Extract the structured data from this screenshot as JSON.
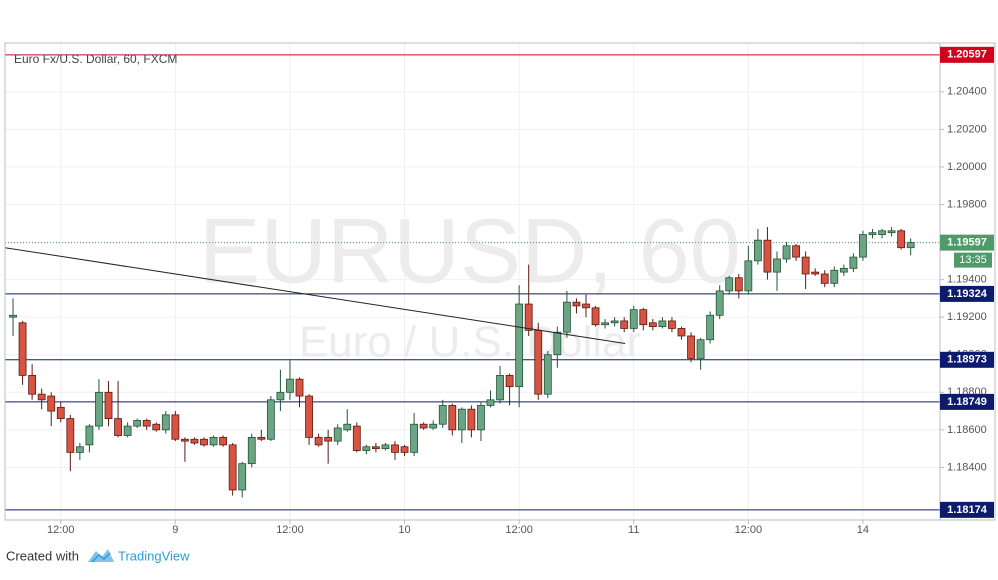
{
  "chart_data": {
    "type": "candlestick",
    "title": "Euro Fx/U.S. Dollar, 60, FXCM",
    "watermark": "EURUSD, 60",
    "watermark_subtitle": "Euro / U.S. Dollar",
    "footer": {
      "prefix": "Created with",
      "brand": "TradingView"
    },
    "up_color": "#6ba583",
    "down_color": "#d75442",
    "grid": true,
    "xlim": [
      -0.84,
      97.07
    ],
    "ylim": [
      1.1812,
      1.2066
    ],
    "xticks": [
      {
        "value": 5,
        "label": "12:00"
      },
      {
        "value": 17,
        "label": "9"
      },
      {
        "value": 29,
        "label": "12:00"
      },
      {
        "value": 41,
        "label": "10"
      },
      {
        "value": 53,
        "label": "12:00"
      },
      {
        "value": 65,
        "label": "11"
      },
      {
        "value": 77,
        "label": "12:00"
      },
      {
        "value": 89,
        "label": "14"
      }
    ],
    "yticks": [
      {
        "value": 1.184,
        "label": "1.18400"
      },
      {
        "value": 1.186,
        "label": "1.18600"
      },
      {
        "value": 1.188,
        "label": "1.18800"
      },
      {
        "value": 1.19,
        "label": "1.19000"
      },
      {
        "value": 1.192,
        "label": "1.19200"
      },
      {
        "value": 1.194,
        "label": "1.19400"
      },
      {
        "value": 1.196,
        "label": "1.19600"
      },
      {
        "value": 1.198,
        "label": "1.19800"
      },
      {
        "value": 1.2,
        "label": "1.20000"
      },
      {
        "value": 1.202,
        "label": "1.20200"
      },
      {
        "value": 1.204,
        "label": "1.20400"
      }
    ],
    "levels": [
      {
        "value": 1.20597,
        "color": "#d0021b"
      },
      {
        "value": 1.19324,
        "color": "#0d1b6e"
      },
      {
        "value": 1.18973,
        "color": "#0d1b6e"
      },
      {
        "value": 1.18749,
        "color": "#0d1b6e"
      },
      {
        "value": 1.18174,
        "color": "#0d1b6e"
      }
    ],
    "last_price": {
      "value": 1.19597,
      "countdown": "13:35",
      "color": "#4e9a6a"
    },
    "trendline": {
      "x": [
        -0.84,
        64.1
      ],
      "y": [
        1.1957,
        1.1906
      ],
      "color": "#222222"
    },
    "candles": [
      [
        1.192,
        1.193,
        1.191,
        1.1921
      ],
      [
        1.1917,
        1.1918,
        1.1884,
        1.1889
      ],
      [
        1.1889,
        1.1895,
        1.1876,
        1.1879
      ],
      [
        1.1879,
        1.1882,
        1.1871,
        1.1876
      ],
      [
        1.1878,
        1.188,
        1.1862,
        1.187
      ],
      [
        1.1872,
        1.1875,
        1.1864,
        1.1866
      ],
      [
        1.1866,
        1.1868,
        1.1838,
        1.1848
      ],
      [
        1.1848,
        1.1853,
        1.1844,
        1.1851
      ],
      [
        1.1852,
        1.1863,
        1.1848,
        1.1862
      ],
      [
        1.1862,
        1.1887,
        1.186,
        1.188
      ],
      [
        1.188,
        1.1886,
        1.1862,
        1.1866
      ],
      [
        1.1866,
        1.1886,
        1.1856,
        1.1857
      ],
      [
        1.1857,
        1.1864,
        1.1856,
        1.1862
      ],
      [
        1.1862,
        1.1866,
        1.1861,
        1.1865
      ],
      [
        1.1865,
        1.1866,
        1.186,
        1.1862
      ],
      [
        1.1863,
        1.1864,
        1.1859,
        1.186
      ],
      [
        1.186,
        1.187,
        1.1858,
        1.1868
      ],
      [
        1.1868,
        1.187,
        1.1854,
        1.1855
      ],
      [
        1.1855,
        1.1856,
        1.1843,
        1.1854
      ],
      [
        1.1855,
        1.1856,
        1.1852,
        1.1853
      ],
      [
        1.1855,
        1.1856,
        1.1851,
        1.1852
      ],
      [
        1.1852,
        1.1857,
        1.1851,
        1.1856
      ],
      [
        1.1856,
        1.1857,
        1.1851,
        1.1852
      ],
      [
        1.1852,
        1.1853,
        1.1825,
        1.1828
      ],
      [
        1.1828,
        1.1843,
        1.1824,
        1.1842
      ],
      [
        1.1842,
        1.1858,
        1.184,
        1.1856
      ],
      [
        1.1856,
        1.186,
        1.1854,
        1.1855
      ],
      [
        1.1855,
        1.1878,
        1.1854,
        1.1876
      ],
      [
        1.1876,
        1.1892,
        1.187,
        1.188
      ],
      [
        1.188,
        1.1897,
        1.1876,
        1.1887
      ],
      [
        1.1887,
        1.1888,
        1.1872,
        1.1878
      ],
      [
        1.1878,
        1.1879,
        1.1852,
        1.1856
      ],
      [
        1.1856,
        1.1858,
        1.1851,
        1.1852
      ],
      [
        1.1856,
        1.186,
        1.1842,
        1.1854
      ],
      [
        1.1854,
        1.1863,
        1.1852,
        1.1861
      ],
      [
        1.186,
        1.1871,
        1.1859,
        1.1863
      ],
      [
        1.1862,
        1.1864,
        1.1848,
        1.1849
      ],
      [
        1.1849,
        1.1852,
        1.1847,
        1.1851
      ],
      [
        1.1851,
        1.1853,
        1.1848,
        1.185
      ],
      [
        1.185,
        1.1853,
        1.1849,
        1.1852
      ],
      [
        1.1852,
        1.1854,
        1.1844,
        1.1848
      ],
      [
        1.1851,
        1.1852,
        1.1846,
        1.1848
      ],
      [
        1.1848,
        1.1869,
        1.1846,
        1.1863
      ],
      [
        1.1863,
        1.1864,
        1.186,
        1.1861
      ],
      [
        1.1861,
        1.1865,
        1.186,
        1.1863
      ],
      [
        1.1863,
        1.1876,
        1.1861,
        1.1873
      ],
      [
        1.1873,
        1.1874,
        1.1857,
        1.186
      ],
      [
        1.186,
        1.1872,
        1.1853,
        1.1871
      ],
      [
        1.1871,
        1.1873,
        1.1856,
        1.186
      ],
      [
        1.186,
        1.1875,
        1.1854,
        1.1873
      ],
      [
        1.1873,
        1.1881,
        1.1872,
        1.1876
      ],
      [
        1.1876,
        1.1894,
        1.1874,
        1.1889
      ],
      [
        1.1889,
        1.189,
        1.1873,
        1.1883
      ],
      [
        1.1883,
        1.1937,
        1.1872,
        1.1927
      ],
      [
        1.1927,
        1.1948,
        1.191,
        1.1913
      ],
      [
        1.1913,
        1.1917,
        1.1876,
        1.1879
      ],
      [
        1.1879,
        1.1902,
        1.1877,
        1.19
      ],
      [
        1.19,
        1.1915,
        1.1893,
        1.1912
      ],
      [
        1.1912,
        1.1934,
        1.1909,
        1.1928
      ],
      [
        1.1928,
        1.193,
        1.1922,
        1.1926
      ],
      [
        1.1927,
        1.1932,
        1.192,
        1.1925
      ],
      [
        1.1925,
        1.1926,
        1.1915,
        1.1916
      ],
      [
        1.1916,
        1.1919,
        1.1914,
        1.1917
      ],
      [
        1.1917,
        1.192,
        1.1915,
        1.1918
      ],
      [
        1.1918,
        1.192,
        1.1912,
        1.1914
      ],
      [
        1.1914,
        1.1926,
        1.1912,
        1.1924
      ],
      [
        1.1924,
        1.1925,
        1.1913,
        1.1916
      ],
      [
        1.1917,
        1.1919,
        1.1913,
        1.1915
      ],
      [
        1.1915,
        1.192,
        1.1914,
        1.1918
      ],
      [
        1.1918,
        1.192,
        1.1912,
        1.1914
      ],
      [
        1.1914,
        1.1915,
        1.1908,
        1.191
      ],
      [
        1.191,
        1.1912,
        1.1896,
        1.1898
      ],
      [
        1.1898,
        1.1909,
        1.1892,
        1.1908
      ],
      [
        1.1908,
        1.1923,
        1.1906,
        1.1921
      ],
      [
        1.1921,
        1.1937,
        1.1919,
        1.1934
      ],
      [
        1.1934,
        1.1942,
        1.1932,
        1.1941
      ],
      [
        1.1941,
        1.1943,
        1.193,
        1.1934
      ],
      [
        1.1934,
        1.1958,
        1.1932,
        1.195
      ],
      [
        1.195,
        1.1967,
        1.1948,
        1.1961
      ],
      [
        1.1961,
        1.1968,
        1.194,
        1.1944
      ],
      [
        1.1944,
        1.1955,
        1.1934,
        1.1951
      ],
      [
        1.1951,
        1.196,
        1.1949,
        1.1958
      ],
      [
        1.1958,
        1.1959,
        1.195,
        1.1952
      ],
      [
        1.1952,
        1.1955,
        1.1935,
        1.1943
      ],
      [
        1.1944,
        1.1946,
        1.1942,
        1.1943
      ],
      [
        1.1943,
        1.1945,
        1.1936,
        1.1938
      ],
      [
        1.1938,
        1.1947,
        1.1936,
        1.1945
      ],
      [
        1.1944,
        1.1948,
        1.1942,
        1.1946
      ],
      [
        1.1946,
        1.1954,
        1.1944,
        1.1952
      ],
      [
        1.1952,
        1.1966,
        1.195,
        1.1964
      ],
      [
        1.1964,
        1.1967,
        1.1962,
        1.1965
      ],
      [
        1.1964,
        1.1967,
        1.1962,
        1.1966
      ],
      [
        1.1965,
        1.1968,
        1.1963,
        1.1966
      ],
      [
        1.1966,
        1.1967,
        1.1956,
        1.1957
      ],
      [
        1.1957,
        1.1962,
        1.1953,
        1.19597
      ]
    ]
  }
}
